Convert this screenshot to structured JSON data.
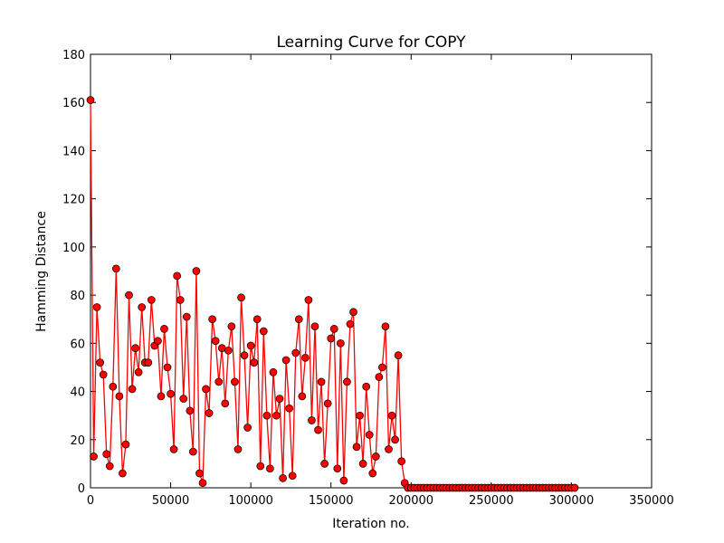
{
  "chart_data": {
    "type": "line",
    "title": "Learning Curve for COPY",
    "xlabel": "Iteration no.",
    "ylabel": "Hamming Distance",
    "x": [
      0,
      2000,
      4000,
      6000,
      8000,
      10000,
      12000,
      14000,
      16000,
      18000,
      20000,
      22000,
      24000,
      26000,
      28000,
      30000,
      32000,
      34000,
      36000,
      38000,
      40000,
      42000,
      44000,
      46000,
      48000,
      50000,
      52000,
      54000,
      56000,
      58000,
      60000,
      62000,
      64000,
      66000,
      68000,
      70000,
      72000,
      74000,
      76000,
      78000,
      80000,
      82000,
      84000,
      86000,
      88000,
      90000,
      92000,
      94000,
      96000,
      98000,
      100000,
      102000,
      104000,
      106000,
      108000,
      110000,
      112000,
      114000,
      116000,
      118000,
      120000,
      122000,
      124000,
      126000,
      128000,
      130000,
      132000,
      134000,
      136000,
      138000,
      140000,
      142000,
      144000,
      146000,
      148000,
      150000,
      152000,
      154000,
      156000,
      158000,
      160000,
      162000,
      164000,
      166000,
      168000,
      170000,
      172000,
      174000,
      176000,
      178000,
      180000,
      182000,
      184000,
      186000,
      188000,
      190000,
      192000,
      194000,
      196000,
      198000,
      200000,
      202000,
      204000,
      206000,
      208000,
      210000,
      212000,
      214000,
      216000,
      218000,
      220000,
      222000,
      224000,
      226000,
      228000,
      230000,
      232000,
      234000,
      236000,
      238000,
      240000,
      242000,
      244000,
      246000,
      248000,
      250000,
      252000,
      254000,
      256000,
      258000,
      260000,
      262000,
      264000,
      266000,
      268000,
      270000,
      272000,
      274000,
      276000,
      278000,
      280000,
      282000,
      284000,
      286000,
      288000,
      290000,
      292000,
      294000,
      296000,
      298000,
      300000,
      302000
    ],
    "series": [
      {
        "name": "COPY",
        "color": "#ff0000",
        "marker_edge": "#000000",
        "values": [
          161,
          13,
          75,
          52,
          47,
          14,
          9,
          42,
          91,
          38,
          6,
          18,
          80,
          41,
          58,
          48,
          75,
          52,
          52,
          78,
          59,
          61,
          38,
          66,
          50,
          39,
          16,
          88,
          78,
          37,
          71,
          32,
          15,
          90,
          6,
          2,
          41,
          31,
          70,
          61,
          44,
          58,
          35,
          57,
          67,
          44,
          16,
          79,
          55,
          25,
          59,
          52,
          70,
          9,
          65,
          30,
          8,
          48,
          30,
          37,
          4,
          53,
          33,
          5,
          56,
          70,
          38,
          54,
          78,
          28,
          67,
          24,
          44,
          10,
          35,
          62,
          66,
          8,
          60,
          3,
          44,
          68,
          73,
          17,
          30,
          10,
          42,
          22,
          6,
          13,
          46,
          50,
          67,
          16,
          30,
          20,
          55,
          11,
          2,
          0,
          0,
          0,
          0,
          0,
          0,
          0,
          0,
          0,
          0,
          0,
          0,
          0,
          0,
          0,
          0,
          0,
          0,
          0,
          0,
          0,
          0,
          0,
          0,
          0,
          0,
          0,
          0,
          0,
          0,
          0,
          0,
          0,
          0,
          0,
          0,
          0,
          0,
          0,
          0,
          0,
          0,
          0,
          0,
          0,
          0,
          0,
          0,
          0,
          0,
          0,
          0,
          0
        ]
      }
    ],
    "xlim": [
      0,
      350000
    ],
    "xticks": [
      0,
      50000,
      100000,
      150000,
      200000,
      250000,
      300000,
      350000
    ],
    "ylim": [
      0,
      180
    ],
    "yticks": [
      0,
      20,
      40,
      60,
      80,
      100,
      120,
      140,
      160,
      180
    ],
    "grid": false
  }
}
